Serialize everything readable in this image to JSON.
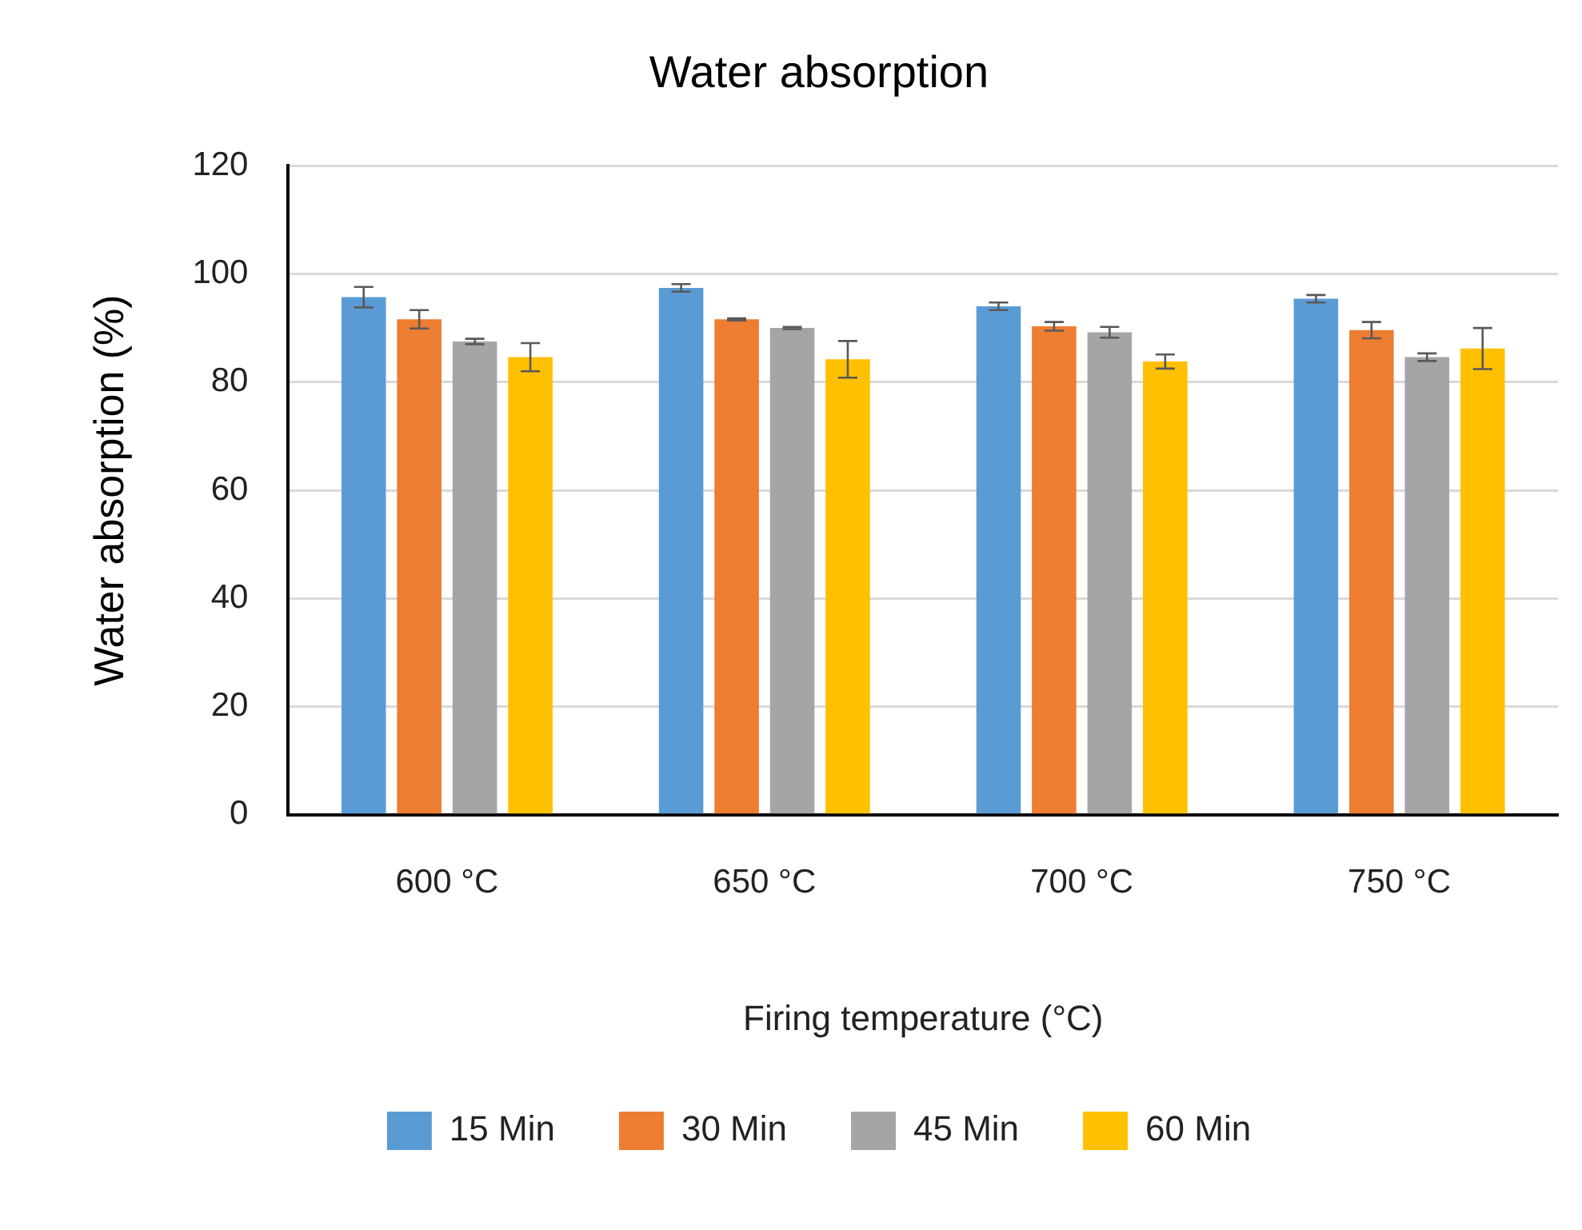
{
  "chart_data": {
    "type": "bar",
    "title": "Water absorption",
    "xlabel": "Firing temperature (°C)",
    "ylabel": "Water absorption (%)",
    "categories": [
      "600 °C",
      "650 °C",
      "700 °C",
      "750 °C"
    ],
    "series": [
      {
        "name": "15 Min",
        "color": "#5b9bd5",
        "values": [
          95.7,
          97.4,
          94.0,
          95.4
        ],
        "errors": [
          1.9,
          0.7,
          0.7,
          0.7
        ]
      },
      {
        "name": "30 Min",
        "color": "#ed7d31",
        "values": [
          91.6,
          91.6,
          90.3,
          89.6
        ],
        "errors": [
          1.7,
          0.2,
          0.8,
          1.5
        ]
      },
      {
        "name": "45 Min",
        "color": "#a5a5a5",
        "values": [
          87.5,
          90.0,
          89.2,
          84.6
        ],
        "errors": [
          0.5,
          0.2,
          1.0,
          0.7
        ]
      },
      {
        "name": "60 Min",
        "color": "#ffc000",
        "values": [
          84.6,
          84.2,
          83.8,
          86.2
        ],
        "errors": [
          2.6,
          3.4,
          1.3,
          3.8
        ]
      }
    ],
    "ylim": [
      0,
      120
    ],
    "yticks": [
      0,
      20,
      40,
      60,
      80,
      100,
      120
    ],
    "grid": "y",
    "legend": "bottom"
  }
}
